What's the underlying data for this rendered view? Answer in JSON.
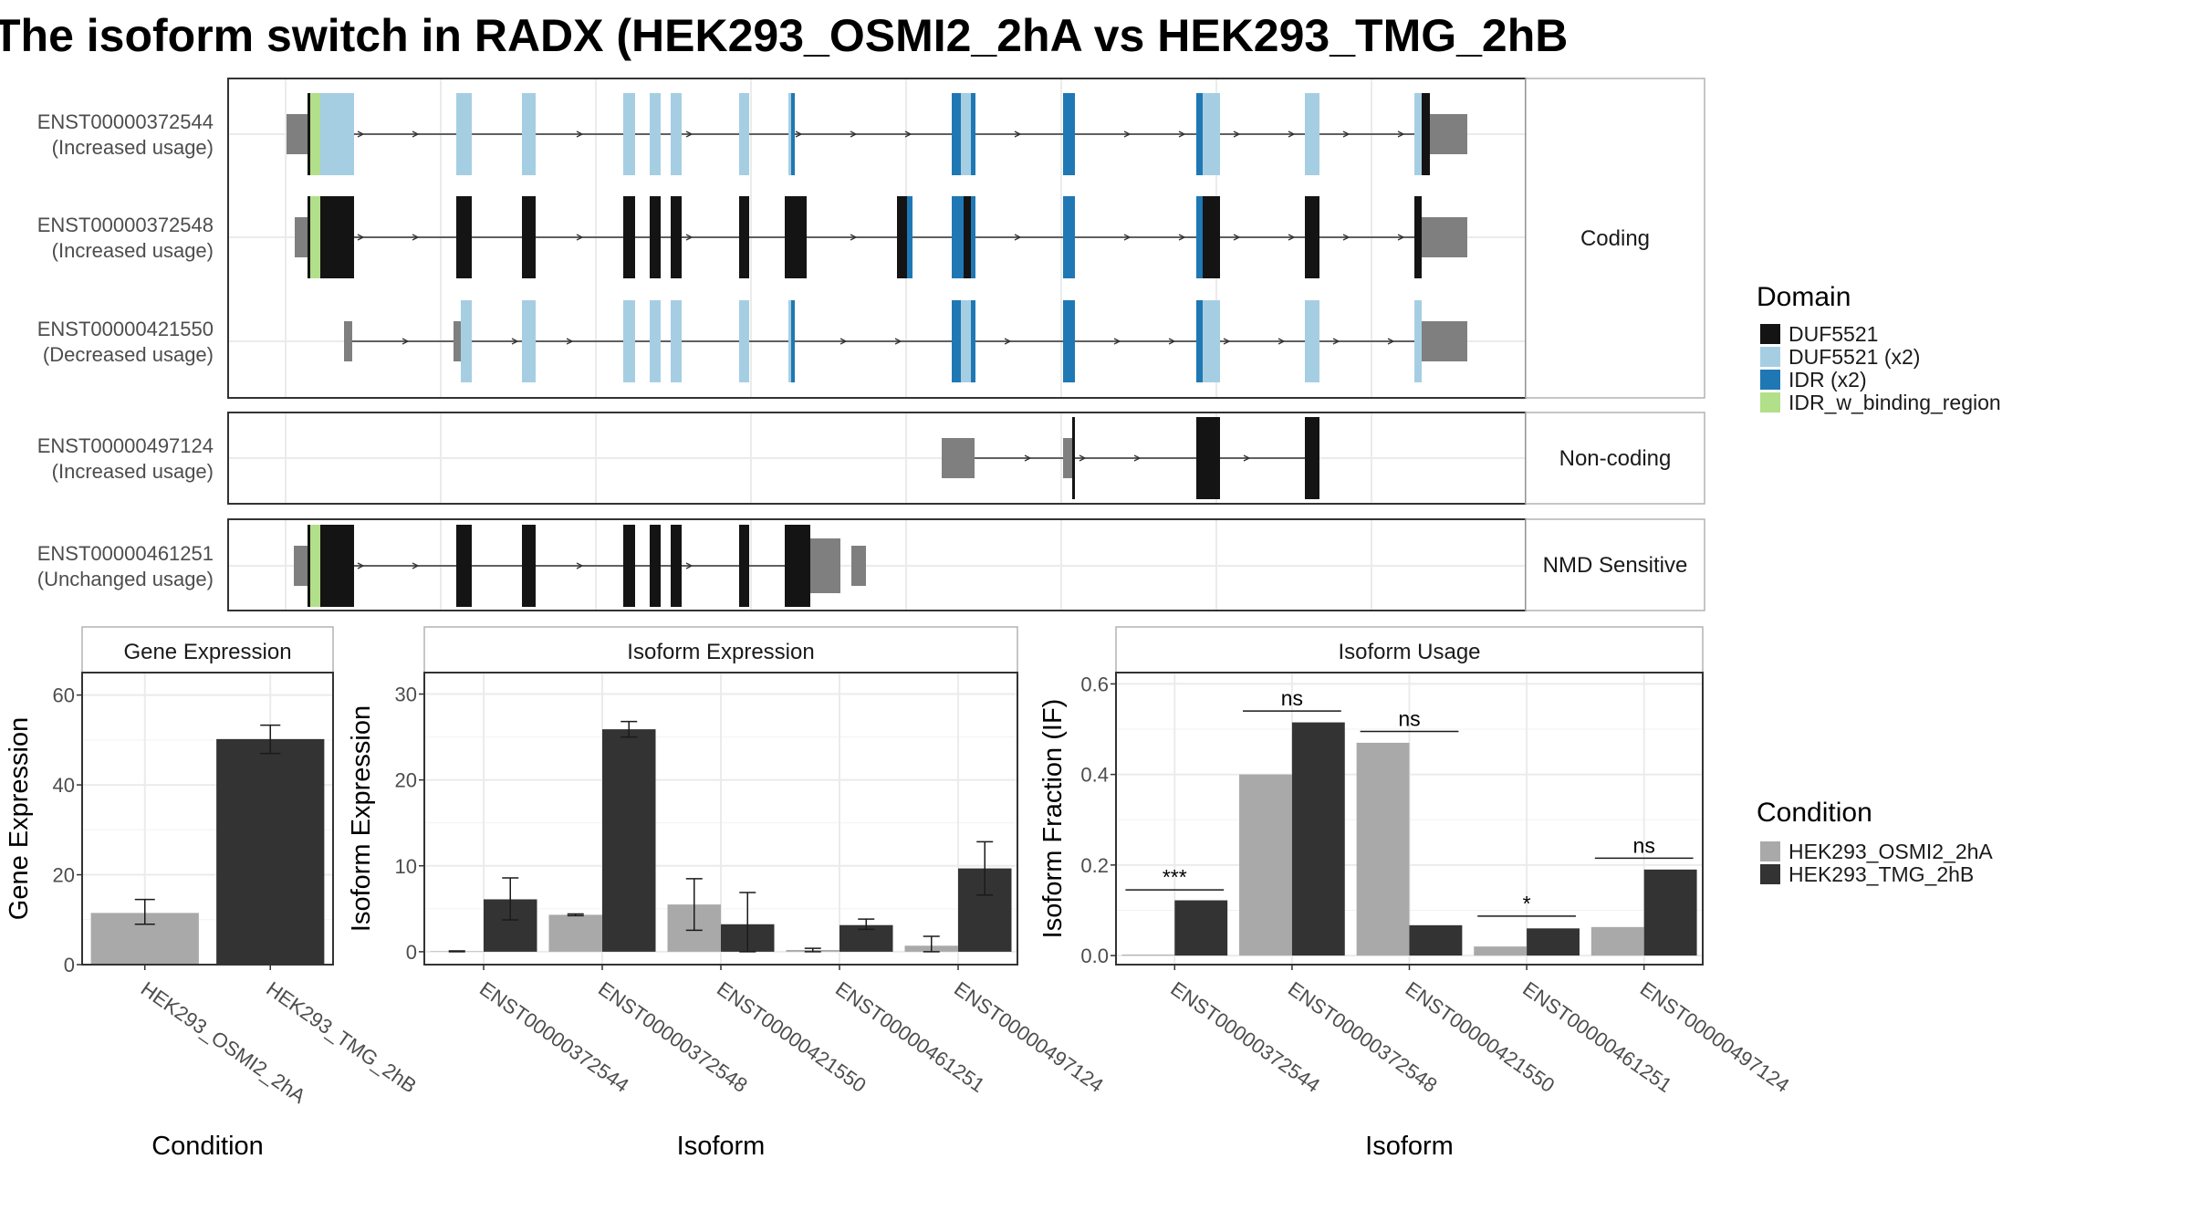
{
  "title": "The isoform switch in RADX (HEK293_OSMI2_2hA vs HEK293_TMG_2hB",
  "colors": {
    "DUF5521": "#141414",
    "DUF5521 (x2)": "#a6cee3",
    "IDR (x2)": "#1f78b4",
    "IDR_w_binding_region": "#b2df8a",
    "utr": "#7f7f7f",
    "cond_A": "#a9a9a9",
    "cond_B": "#333333"
  },
  "structure": {
    "groups": [
      {
        "label": "Coding",
        "isoforms": [
          {
            "name": "ENST00000372544",
            "usage": "(Increased usage)"
          },
          {
            "name": "ENST00000372548",
            "usage": "(Increased usage)"
          },
          {
            "name": "ENST00000421550",
            "usage": "(Decreased usage)"
          }
        ]
      },
      {
        "label": "Non-coding",
        "isoforms": [
          {
            "name": "ENST00000497124",
            "usage": "(Increased usage)"
          }
        ]
      },
      {
        "label": "NMD Sensitive",
        "isoforms": [
          {
            "name": "ENST00000461251",
            "usage": "(Unchanged usage)"
          }
        ]
      }
    ]
  },
  "legends": {
    "domain": {
      "title": "Domain",
      "items": [
        "DUF5521",
        "DUF5521 (x2)",
        "IDR (x2)",
        "IDR_w_binding_region"
      ]
    },
    "condition": {
      "title": "Condition",
      "items": [
        "HEK293_OSMI2_2hA",
        "HEK293_TMG_2hB"
      ]
    }
  },
  "chart_data": [
    {
      "type": "bar",
      "title": "Gene Expression",
      "xlabel": "Condition",
      "ylabel": "Gene Expression",
      "ylim": [
        0,
        65
      ],
      "yticks": [
        0,
        20,
        40,
        60
      ],
      "categories": [
        "HEK293_OSMI2_2hA",
        "HEK293_TMG_2hB"
      ],
      "values": [
        11.5,
        50.2
      ],
      "errors": [
        [
          9.0,
          14.5
        ],
        [
          47.0,
          53.3
        ]
      ]
    },
    {
      "type": "bar",
      "title": "Isoform Expression",
      "xlabel": "Isoform",
      "ylabel": "Isoform Expression",
      "ylim": [
        -1.5,
        32.5
      ],
      "yticks": [
        0,
        10,
        20,
        30
      ],
      "categories": [
        "ENST00000372544",
        "ENST00000372548",
        "ENST00000421550",
        "ENST00000461251",
        "ENST00000497124"
      ],
      "series": [
        {
          "name": "HEK293_OSMI2_2hA",
          "values": [
            0.05,
            4.3,
            5.5,
            0.2,
            0.7
          ],
          "errors": [
            [
              0,
              0.1
            ],
            [
              4.2,
              4.4
            ],
            [
              2.5,
              8.5
            ],
            [
              0,
              0.4
            ],
            [
              0,
              1.8
            ]
          ]
        },
        {
          "name": "HEK293_TMG_2hB",
          "values": [
            6.1,
            25.9,
            3.2,
            3.1,
            9.7
          ],
          "errors": [
            [
              3.7,
              8.6
            ],
            [
              25.0,
              26.8
            ],
            [
              0,
              6.9
            ],
            [
              2.6,
              3.8
            ],
            [
              6.6,
              12.8
            ]
          ]
        }
      ]
    },
    {
      "type": "bar",
      "title": "Isoform Usage",
      "xlabel": "Isoform",
      "ylabel": "Isoform Fraction (IF)",
      "ylim": [
        -0.02,
        0.625
      ],
      "yticks": [
        0.0,
        0.2,
        0.4,
        0.6
      ],
      "categories": [
        "ENST00000372544",
        "ENST00000372548",
        "ENST00000421550",
        "ENST00000461251",
        "ENST00000497124"
      ],
      "series": [
        {
          "name": "HEK293_OSMI2_2hA",
          "values": [
            0.002,
            0.4,
            0.47,
            0.02,
            0.063
          ]
        },
        {
          "name": "HEK293_TMG_2hB",
          "values": [
            0.122,
            0.515,
            0.067,
            0.06,
            0.19
          ]
        }
      ],
      "annotations": [
        {
          "label": "***",
          "y": 0.145
        },
        {
          "label": "ns",
          "y": 0.54
        },
        {
          "label": "ns",
          "y": 0.495
        },
        {
          "label": "*",
          "y": 0.087
        },
        {
          "label": "ns",
          "y": 0.215
        }
      ]
    }
  ]
}
